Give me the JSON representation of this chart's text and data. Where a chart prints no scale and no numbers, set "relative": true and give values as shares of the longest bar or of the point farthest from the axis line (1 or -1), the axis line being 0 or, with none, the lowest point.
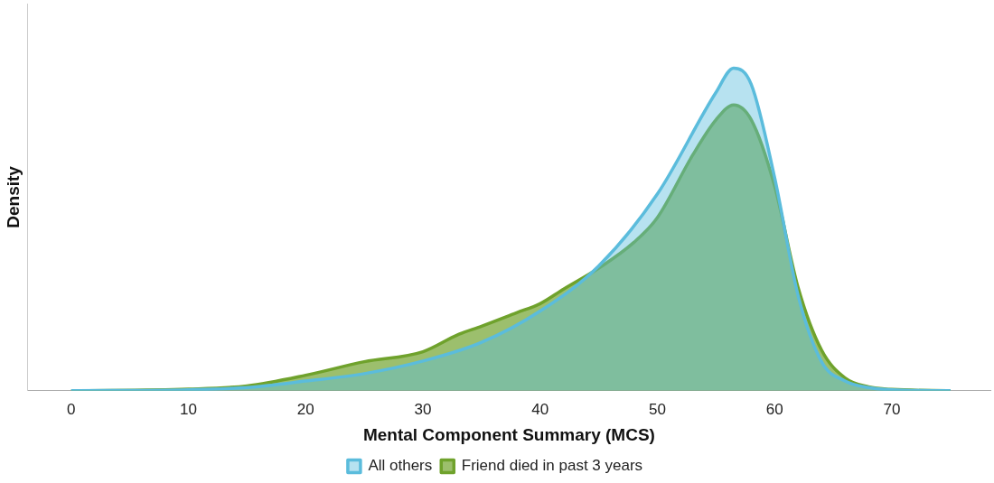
{
  "chart_data": {
    "type": "area",
    "relative": true,
    "xlabel": "Mental Component Summary (MCS)",
    "ylabel": "Density",
    "xlim": [
      -3.7,
      78.4
    ],
    "xticks": [
      0,
      10,
      20,
      30,
      40,
      50,
      60,
      70
    ],
    "grid": false,
    "legend": "bottom",
    "series": [
      {
        "name": "All others",
        "color": "#5bbcdc",
        "x": [
          0,
          10,
          15,
          20,
          25,
          30,
          35,
          40,
          45,
          50,
          55,
          56.5,
          58,
          60,
          62,
          64,
          66,
          68,
          70,
          75
        ],
        "values": [
          0,
          0.003,
          0.01,
          0.03,
          0.053,
          0.092,
          0.15,
          0.247,
          0.387,
          0.61,
          0.925,
          1,
          0.95,
          0.66,
          0.295,
          0.09,
          0.03,
          0.01,
          0.003,
          0
        ]
      },
      {
        "name": "Friend died in past 3 years",
        "color": "#6fa22c",
        "x": [
          0,
          10,
          15,
          20,
          25,
          30,
          33,
          35,
          38,
          40,
          42,
          45,
          48,
          50,
          53,
          55,
          56.5,
          58,
          60,
          62,
          64,
          66,
          68,
          70,
          75
        ],
        "values": [
          0,
          0.005,
          0.015,
          0.048,
          0.09,
          0.121,
          0.174,
          0.2,
          0.242,
          0.27,
          0.315,
          0.38,
          0.46,
          0.537,
          0.73,
          0.84,
          0.886,
          0.84,
          0.634,
          0.32,
          0.126,
          0.04,
          0.012,
          0.004,
          0
        ]
      }
    ]
  }
}
